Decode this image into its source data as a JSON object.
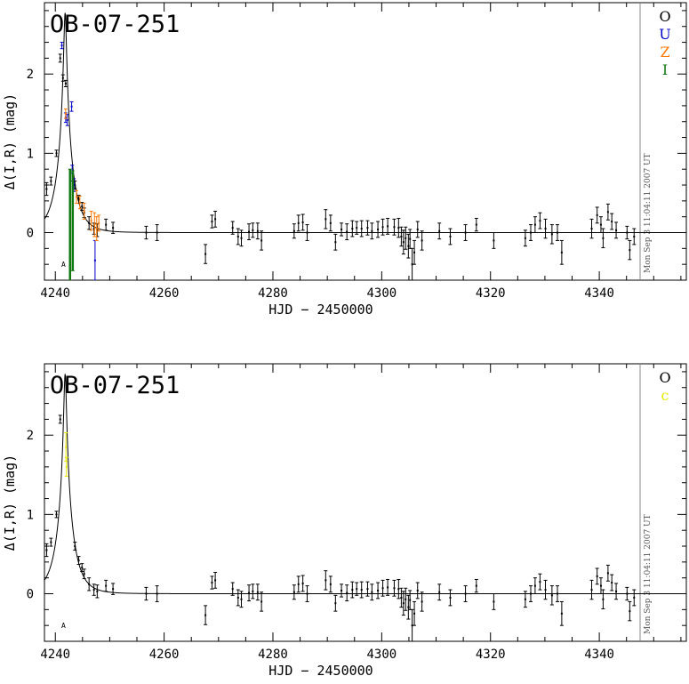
{
  "chart_data": [
    {
      "type": "scatter",
      "title": "OB-07-251",
      "xlabel": "HJD − 2450000",
      "ylabel": "Δ(I,R) (mag)",
      "xlim": [
        4238,
        4356
      ],
      "ylim": [
        -0.6,
        2.9
      ],
      "xticks": [
        4240,
        4260,
        4280,
        4300,
        4320,
        4340
      ],
      "yticks": [
        0,
        1,
        2
      ],
      "timestamp": "Mon Sep  3 11:04:11 2007 UT",
      "marker_label": "A",
      "marker_position": {
        "x": 4241.5,
        "y": -0.4
      },
      "model": {
        "t0": 4241.8,
        "u0": 0.078,
        "tE": 2.8
      },
      "legend": [
        {
          "label": "O",
          "color": "#000000"
        },
        {
          "label": "U",
          "color": "#0000cc"
        },
        {
          "label": "Z",
          "color": "#ff7700"
        },
        {
          "label": "I",
          "color": "#117711"
        }
      ],
      "series": [
        {
          "name": "O",
          "color": "#000000",
          "points": [
            [
              4238.4,
              0.55,
              0.08
            ],
            [
              4239.2,
              0.65,
              0.05
            ],
            [
              4240.2,
              1.0,
              0.04
            ],
            [
              4240.9,
              2.2,
              0.05
            ],
            [
              4241.4,
              1.95,
              0.04
            ],
            [
              4241.9,
              1.88,
              0.04
            ],
            [
              4243.6,
              0.6,
              0.05
            ],
            [
              4244.3,
              0.42,
              0.05
            ],
            [
              4244.9,
              0.33,
              0.05
            ],
            [
              4245.3,
              0.25,
              0.06
            ],
            [
              4246.2,
              0.12,
              0.08
            ],
            [
              4247.1,
              0.05,
              0.07
            ],
            [
              4247.7,
              0.03,
              0.08
            ],
            [
              4249.3,
              0.1,
              0.07
            ],
            [
              4250.6,
              0.06,
              0.07
            ],
            [
              4256.7,
              0.0,
              0.08
            ],
            [
              4258.7,
              0.0,
              0.1
            ],
            [
              4267.6,
              -0.27,
              0.12
            ],
            [
              4268.8,
              0.14,
              0.08
            ],
            [
              4269.4,
              0.17,
              0.1
            ],
            [
              4272.6,
              0.06,
              0.08
            ],
            [
              4273.6,
              -0.05,
              0.1
            ],
            [
              4274.2,
              -0.07,
              0.1
            ],
            [
              4275.6,
              0.01,
              0.1
            ],
            [
              4276.3,
              0.03,
              0.09
            ],
            [
              4277.2,
              0.02,
              0.1
            ],
            [
              4277.9,
              -0.1,
              0.12
            ],
            [
              4283.9,
              0.02,
              0.09
            ],
            [
              4284.7,
              0.12,
              0.1
            ],
            [
              4285.5,
              0.13,
              0.1
            ],
            [
              4286.3,
              0.0,
              0.1
            ],
            [
              4289.7,
              0.17,
              0.12
            ],
            [
              4290.6,
              0.12,
              0.1
            ],
            [
              4291.5,
              -0.12,
              0.1
            ],
            [
              4292.6,
              0.04,
              0.08
            ],
            [
              4293.6,
              0.01,
              0.1
            ],
            [
              4294.6,
              0.05,
              0.1
            ],
            [
              4295.4,
              0.06,
              0.08
            ],
            [
              4296.3,
              0.05,
              0.1
            ],
            [
              4297.4,
              0.06,
              0.09
            ],
            [
              4298.2,
              0.02,
              0.1
            ],
            [
              4299.3,
              0.04,
              0.1
            ],
            [
              4300.2,
              0.07,
              0.1
            ],
            [
              4301.1,
              0.08,
              0.1
            ],
            [
              4302.3,
              0.07,
              0.1
            ],
            [
              4303.1,
              0.06,
              0.12
            ],
            [
              4303.6,
              -0.05,
              0.12
            ],
            [
              4304.0,
              -0.12,
              0.15
            ],
            [
              4304.4,
              -0.07,
              0.14
            ],
            [
              4304.9,
              -0.17,
              0.15
            ],
            [
              4305.2,
              -0.08,
              0.12
            ],
            [
              4305.6,
              -0.4,
              0.2
            ],
            [
              4306.0,
              -0.25,
              0.15
            ],
            [
              4306.6,
              0.04,
              0.1
            ],
            [
              4307.4,
              -0.1,
              0.12
            ],
            [
              4310.6,
              0.02,
              0.1
            ],
            [
              4312.6,
              -0.05,
              0.1
            ],
            [
              4315.4,
              0.0,
              0.1
            ],
            [
              4317.4,
              0.1,
              0.08
            ],
            [
              4320.6,
              -0.1,
              0.1
            ],
            [
              4326.4,
              -0.07,
              0.1
            ],
            [
              4327.4,
              0.0,
              0.1
            ],
            [
              4328.2,
              0.1,
              0.1
            ],
            [
              4329.1,
              0.15,
              0.1
            ],
            [
              4330.1,
              0.05,
              0.12
            ],
            [
              4331.3,
              -0.02,
              0.12
            ],
            [
              4332.3,
              0.0,
              0.1
            ],
            [
              4333.1,
              -0.25,
              0.15
            ],
            [
              4338.6,
              0.05,
              0.12
            ],
            [
              4339.6,
              0.22,
              0.1
            ],
            [
              4340.3,
              0.1,
              0.1
            ],
            [
              4340.7,
              -0.07,
              0.12
            ],
            [
              4341.6,
              0.26,
              0.1
            ],
            [
              4342.3,
              0.14,
              0.1
            ],
            [
              4343.1,
              0.03,
              0.1
            ],
            [
              4345.1,
              0.0,
              0.08
            ],
            [
              4345.6,
              -0.22,
              0.12
            ],
            [
              4346.4,
              -0.05,
              0.1
            ]
          ]
        },
        {
          "name": "U",
          "color": "#0000cc",
          "points": [
            [
              4241.2,
              2.36,
              0.04
            ],
            [
              4241.9,
              1.45,
              0.06
            ],
            [
              4242.2,
              1.42,
              0.07
            ],
            [
              4243.0,
              1.59,
              0.06
            ],
            [
              4243.1,
              0.75,
              0.1
            ],
            [
              4243.4,
              0.6,
              0.08
            ],
            [
              4247.3,
              -0.35,
              0.25
            ]
          ]
        },
        {
          "name": "Z",
          "color": "#ff7700",
          "points": [
            [
              4241.9,
              1.5,
              0.06
            ],
            [
              4243.9,
              0.45,
              0.08
            ],
            [
              4244.5,
              0.38,
              0.08
            ],
            [
              4245.3,
              0.27,
              0.1
            ],
            [
              4246.6,
              0.15,
              0.12
            ],
            [
              4247.2,
              0.1,
              0.15
            ],
            [
              4247.6,
              0.05,
              0.15
            ],
            [
              4248.0,
              0.12,
              0.1
            ]
          ]
        },
        {
          "name": "I",
          "color": "#117711",
          "points": [
            [
              4242.7,
              0.1,
              0.7
            ],
            [
              4243.2,
              0.15,
              0.63
            ]
          ]
        }
      ]
    },
    {
      "type": "scatter",
      "title": "OB-07-251",
      "xlabel": "HJD − 2450000",
      "ylabel": "Δ(I,R) (mag)",
      "xlim": [
        4238,
        4356
      ],
      "ylim": [
        -0.6,
        2.9
      ],
      "xticks": [
        4240,
        4260,
        4280,
        4300,
        4320,
        4340
      ],
      "yticks": [
        0,
        1,
        2
      ],
      "timestamp": "Mon Sep  3 11:04:11 2007 UT",
      "marker_label": "A",
      "marker_position": {
        "x": 4241.5,
        "y": -0.4
      },
      "model": {
        "t0": 4241.8,
        "u0": 0.078,
        "tE": 2.8
      },
      "legend": [
        {
          "label": "O",
          "color": "#000000"
        },
        {
          "label": "c",
          "color": "#e8e800"
        }
      ],
      "series": [
        {
          "name": "O",
          "color": "#000000",
          "points": [
            [
              4238.4,
              0.55,
              0.08
            ],
            [
              4239.2,
              0.65,
              0.05
            ],
            [
              4240.2,
              1.0,
              0.04
            ],
            [
              4240.9,
              2.2,
              0.05
            ],
            [
              4243.6,
              0.6,
              0.05
            ],
            [
              4244.3,
              0.42,
              0.05
            ],
            [
              4244.9,
              0.33,
              0.05
            ],
            [
              4245.3,
              0.25,
              0.06
            ],
            [
              4246.2,
              0.12,
              0.08
            ],
            [
              4247.1,
              0.05,
              0.07
            ],
            [
              4247.7,
              0.03,
              0.08
            ],
            [
              4249.3,
              0.1,
              0.07
            ],
            [
              4250.6,
              0.06,
              0.07
            ],
            [
              4256.7,
              0.0,
              0.08
            ],
            [
              4258.7,
              0.0,
              0.1
            ],
            [
              4267.6,
              -0.27,
              0.12
            ],
            [
              4268.8,
              0.14,
              0.08
            ],
            [
              4269.4,
              0.17,
              0.1
            ],
            [
              4272.6,
              0.06,
              0.08
            ],
            [
              4273.6,
              -0.05,
              0.1
            ],
            [
              4274.2,
              -0.07,
              0.1
            ],
            [
              4275.6,
              0.01,
              0.1
            ],
            [
              4276.3,
              0.03,
              0.09
            ],
            [
              4277.2,
              0.02,
              0.1
            ],
            [
              4277.9,
              -0.1,
              0.12
            ],
            [
              4283.9,
              0.02,
              0.09
            ],
            [
              4284.7,
              0.12,
              0.1
            ],
            [
              4285.5,
              0.13,
              0.1
            ],
            [
              4286.3,
              0.0,
              0.1
            ],
            [
              4289.7,
              0.17,
              0.12
            ],
            [
              4290.6,
              0.12,
              0.1
            ],
            [
              4291.5,
              -0.12,
              0.1
            ],
            [
              4292.6,
              0.04,
              0.08
            ],
            [
              4293.6,
              0.01,
              0.1
            ],
            [
              4294.6,
              0.05,
              0.1
            ],
            [
              4295.4,
              0.06,
              0.08
            ],
            [
              4296.3,
              0.05,
              0.1
            ],
            [
              4297.4,
              0.06,
              0.09
            ],
            [
              4298.2,
              0.02,
              0.1
            ],
            [
              4299.3,
              0.04,
              0.1
            ],
            [
              4300.2,
              0.07,
              0.1
            ],
            [
              4301.1,
              0.08,
              0.1
            ],
            [
              4302.3,
              0.07,
              0.1
            ],
            [
              4303.1,
              0.06,
              0.12
            ],
            [
              4303.6,
              -0.05,
              0.12
            ],
            [
              4304.0,
              -0.12,
              0.15
            ],
            [
              4304.4,
              -0.07,
              0.14
            ],
            [
              4304.9,
              -0.17,
              0.15
            ],
            [
              4305.2,
              -0.08,
              0.12
            ],
            [
              4305.6,
              -0.4,
              0.2
            ],
            [
              4306.0,
              -0.25,
              0.15
            ],
            [
              4306.6,
              0.04,
              0.1
            ],
            [
              4307.4,
              -0.1,
              0.12
            ],
            [
              4310.6,
              0.02,
              0.1
            ],
            [
              4312.6,
              -0.05,
              0.1
            ],
            [
              4315.4,
              0.0,
              0.1
            ],
            [
              4317.4,
              0.1,
              0.08
            ],
            [
              4320.6,
              -0.1,
              0.1
            ],
            [
              4326.4,
              -0.07,
              0.1
            ],
            [
              4327.4,
              0.0,
              0.1
            ],
            [
              4328.2,
              0.1,
              0.1
            ],
            [
              4329.1,
              0.15,
              0.1
            ],
            [
              4330.1,
              0.05,
              0.12
            ],
            [
              4331.3,
              -0.02,
              0.12
            ],
            [
              4332.3,
              0.0,
              0.1
            ],
            [
              4333.1,
              -0.25,
              0.15
            ],
            [
              4338.6,
              0.05,
              0.12
            ],
            [
              4339.6,
              0.22,
              0.1
            ],
            [
              4340.3,
              0.1,
              0.1
            ],
            [
              4340.7,
              -0.07,
              0.12
            ],
            [
              4341.6,
              0.26,
              0.1
            ],
            [
              4342.3,
              0.14,
              0.1
            ],
            [
              4343.1,
              0.03,
              0.1
            ],
            [
              4345.1,
              0.0,
              0.08
            ],
            [
              4345.6,
              -0.22,
              0.12
            ],
            [
              4346.4,
              -0.05,
              0.1
            ]
          ]
        },
        {
          "name": "c",
          "color": "#e8e800",
          "points": [
            [
              4241.95,
              1.85,
              0.18
            ],
            [
              4242.05,
              1.6,
              0.12
            ]
          ]
        }
      ]
    }
  ]
}
